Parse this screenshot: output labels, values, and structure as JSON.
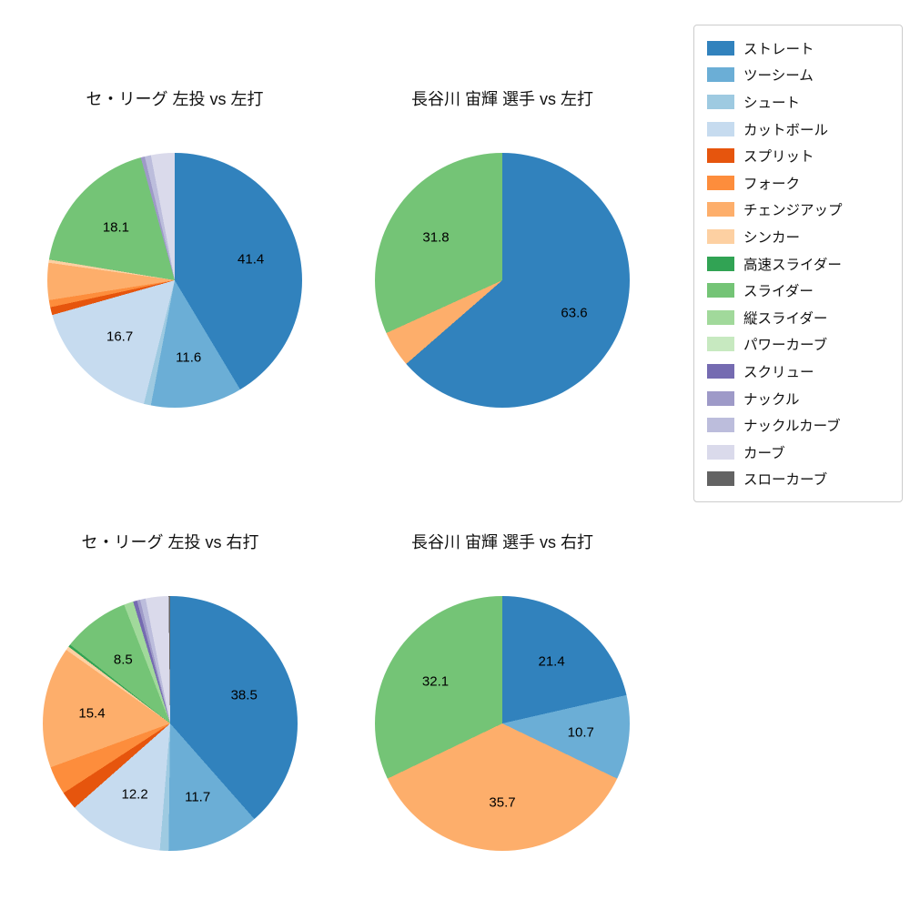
{
  "figure": {
    "background_color": "#ffffff"
  },
  "chart_data": [
    {
      "type": "pie",
      "title": "セ・リーグ 左投 vs 左打",
      "direction": "clockwise",
      "start_angle": "top",
      "legend_position": "upper right outside",
      "slices": [
        {
          "name": "ストレート",
          "value": 41.4,
          "labeled": true
        },
        {
          "name": "ツーシーム",
          "value": 11.6,
          "labeled": true
        },
        {
          "name": "シュート",
          "value": 0.9,
          "labeled": false
        },
        {
          "name": "カットボール",
          "value": 16.7,
          "labeled": true
        },
        {
          "name": "スプリット",
          "value": 1.0,
          "labeled": false
        },
        {
          "name": "フォーク",
          "value": 0.9,
          "labeled": false
        },
        {
          "name": "チェンジアップ",
          "value": 4.7,
          "labeled": false
        },
        {
          "name": "シンカー",
          "value": 0.4,
          "labeled": false
        },
        {
          "name": "スライダー",
          "value": 18.1,
          "labeled": true
        },
        {
          "name": "ナックル",
          "value": 0.5,
          "labeled": false
        },
        {
          "name": "ナックルカーブ",
          "value": 0.8,
          "labeled": false
        },
        {
          "name": "カーブ",
          "value": 3.0,
          "labeled": false
        }
      ]
    },
    {
      "type": "pie",
      "title": "長谷川 宙輝 選手 vs 左打",
      "direction": "clockwise",
      "start_angle": "top",
      "slices": [
        {
          "name": "ストレート",
          "value": 63.6,
          "labeled": true
        },
        {
          "name": "チェンジアップ",
          "value": 4.6,
          "labeled": false
        },
        {
          "name": "スライダー",
          "value": 31.8,
          "labeled": true
        }
      ]
    },
    {
      "type": "pie",
      "title": "セ・リーグ 左投 vs 右打",
      "direction": "clockwise",
      "start_angle": "top",
      "slices": [
        {
          "name": "ストレート",
          "value": 38.5,
          "labeled": true
        },
        {
          "name": "ツーシーム",
          "value": 11.7,
          "labeled": true
        },
        {
          "name": "シュート",
          "value": 1.1,
          "labeled": false
        },
        {
          "name": "カットボール",
          "value": 12.2,
          "labeled": true
        },
        {
          "name": "スプリット",
          "value": 2.3,
          "labeled": false
        },
        {
          "name": "フォーク",
          "value": 3.6,
          "labeled": false
        },
        {
          "name": "チェンジアップ",
          "value": 15.4,
          "labeled": true
        },
        {
          "name": "シンカー",
          "value": 0.5,
          "labeled": false
        },
        {
          "name": "高速スライダー",
          "value": 0.3,
          "labeled": false
        },
        {
          "name": "スライダー",
          "value": 8.5,
          "labeled": true
        },
        {
          "name": "縦スライダー",
          "value": 1.2,
          "labeled": false
        },
        {
          "name": "スクリュー",
          "value": 0.5,
          "labeled": false
        },
        {
          "name": "ナックル",
          "value": 0.4,
          "labeled": false
        },
        {
          "name": "ナックルカーブ",
          "value": 0.7,
          "labeled": false
        },
        {
          "name": "カーブ",
          "value": 2.9,
          "labeled": false
        },
        {
          "name": "スローカーブ",
          "value": 0.2,
          "labeled": false
        }
      ]
    },
    {
      "type": "pie",
      "title": "長谷川 宙輝 選手 vs 右打",
      "direction": "clockwise",
      "start_angle": "top",
      "slices": [
        {
          "name": "ストレート",
          "value": 21.4,
          "labeled": true
        },
        {
          "name": "ツーシーム",
          "value": 10.7,
          "labeled": true
        },
        {
          "name": "チェンジアップ",
          "value": 35.7,
          "labeled": true
        },
        {
          "name": "スライダー",
          "value": 32.1,
          "labeled": true
        }
      ]
    }
  ],
  "legend": {
    "items": [
      {
        "label": "ストレート",
        "color": "#3182bd"
      },
      {
        "label": "ツーシーム",
        "color": "#6baed6"
      },
      {
        "label": "シュート",
        "color": "#9ecae1"
      },
      {
        "label": "カットボール",
        "color": "#c6dbef"
      },
      {
        "label": "スプリット",
        "color": "#e6550d"
      },
      {
        "label": "フォーク",
        "color": "#fd8d3c"
      },
      {
        "label": "チェンジアップ",
        "color": "#fdae6b"
      },
      {
        "label": "シンカー",
        "color": "#fdd0a2"
      },
      {
        "label": "高速スライダー",
        "color": "#31a354"
      },
      {
        "label": "スライダー",
        "color": "#74c476"
      },
      {
        "label": "縦スライダー",
        "color": "#a1d99b"
      },
      {
        "label": "パワーカーブ",
        "color": "#c7e9c0"
      },
      {
        "label": "スクリュー",
        "color": "#756bb1"
      },
      {
        "label": "ナックル",
        "color": "#9e9ac8"
      },
      {
        "label": "ナックルカーブ",
        "color": "#bcbddc"
      },
      {
        "label": "カーブ",
        "color": "#dadaeb"
      },
      {
        "label": "スローカーブ",
        "color": "#636363"
      }
    ]
  }
}
